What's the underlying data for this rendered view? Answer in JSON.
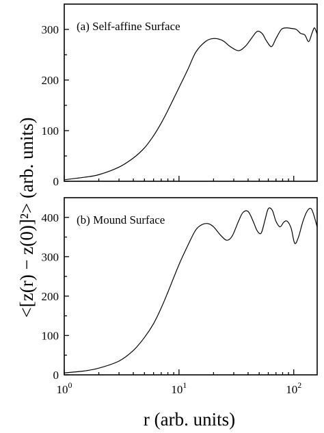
{
  "figure": {
    "xlabel": "r (arb. units)",
    "ylabel": "<[z(r) − z(0)]²> (arb. units)"
  },
  "chart_data": [
    {
      "type": "line",
      "panel_label": "(a) Self-affine Surface",
      "xscale": "log",
      "xlim": [
        1,
        160
      ],
      "ylim": [
        0,
        350
      ],
      "yticks": [
        0,
        100,
        200,
        300
      ],
      "xtick_labels": [],
      "grid": false,
      "series": [
        {
          "x": [
            1,
            1.5,
            2,
            3,
            4,
            5,
            6,
            7,
            8,
            10,
            12,
            14,
            17,
            20,
            24,
            28,
            33,
            38,
            43,
            48,
            53,
            58,
            64,
            70,
            78,
            86,
            95,
            105,
            115,
            125,
            135,
            145,
            152,
            160
          ],
          "y": [
            3,
            8,
            13,
            28,
            46,
            66,
            90,
            115,
            140,
            185,
            222,
            255,
            276,
            282,
            278,
            266,
            258,
            267,
            283,
            296,
            292,
            277,
            266,
            282,
            300,
            303,
            302,
            300,
            292,
            289,
            276,
            294,
            303,
            290
          ]
        }
      ]
    },
    {
      "type": "line",
      "panel_label": "(b) Mound Surface",
      "xscale": "log",
      "xlim": [
        1,
        160
      ],
      "ylim": [
        0,
        450
      ],
      "yticks": [
        0,
        100,
        200,
        300,
        400
      ],
      "xtick_labels": [
        "10^0",
        "10^1",
        "10^2"
      ],
      "grid": false,
      "series": [
        {
          "x": [
            1,
            1.5,
            2,
            3,
            4,
            5,
            6,
            7,
            8,
            10,
            12,
            14,
            16,
            18,
            20,
            23,
            26,
            29,
            33,
            36,
            40,
            44,
            48,
            52,
            56,
            60,
            65,
            70,
            76,
            82,
            88,
            95,
            102,
            110,
            118,
            126,
            134,
            142,
            150,
            160
          ],
          "y": [
            5,
            10,
            17,
            35,
            62,
            95,
            130,
            170,
            210,
            280,
            330,
            368,
            382,
            384,
            376,
            355,
            342,
            352,
            390,
            412,
            415,
            392,
            366,
            360,
            392,
            422,
            418,
            390,
            376,
            388,
            390,
            372,
            334,
            350,
            382,
            406,
            420,
            422,
            405,
            375
          ]
        }
      ]
    }
  ]
}
